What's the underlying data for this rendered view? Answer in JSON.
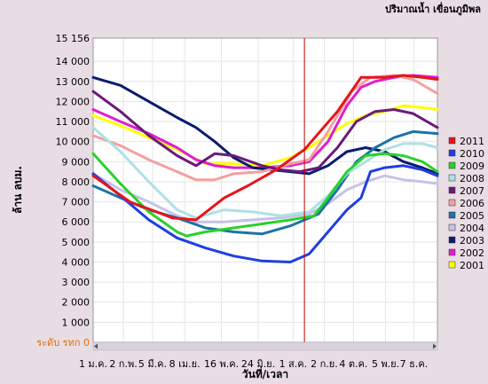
{
  "chart_data": {
    "type": "line",
    "title": "ปริมาณน้ำ เขื่อนภูมิพล",
    "xlabel": "วันที่/เวลา",
    "ylabel": "ล้าน ลบม.",
    "ylim": [
      0,
      15156
    ],
    "yticks": [
      {
        "value": 0,
        "label": "ระดับ รทก 0"
      },
      {
        "value": 1000,
        "label": "1 000"
      },
      {
        "value": 2000,
        "label": "2 000"
      },
      {
        "value": 3000,
        "label": "3 000"
      },
      {
        "value": 4000,
        "label": "4 000"
      },
      {
        "value": 5000,
        "label": "5 000"
      },
      {
        "value": 6000,
        "label": "6 000"
      },
      {
        "value": 7000,
        "label": "7 000"
      },
      {
        "value": 8000,
        "label": "8 000"
      },
      {
        "value": 9000,
        "label": "9 000"
      },
      {
        "value": 10000,
        "label": "10 000"
      },
      {
        "value": 11000,
        "label": "11 000"
      },
      {
        "value": 12000,
        "label": "12 000"
      },
      {
        "value": 13000,
        "label": "13 000"
      },
      {
        "value": 14000,
        "label": "14 000"
      },
      {
        "value": 15156,
        "label": "15 156"
      }
    ],
    "xlim": [
      1,
      366
    ],
    "xticks": [
      {
        "day": 1,
        "label": "1 ม.ค."
      },
      {
        "day": 33,
        "label": "2 ก.พ."
      },
      {
        "day": 64,
        "label": "5 มี.ค."
      },
      {
        "day": 98,
        "label": "8 เม.ย."
      },
      {
        "day": 137,
        "label": "16 พ.ค."
      },
      {
        "day": 176,
        "label": "24 มิ.ย."
      },
      {
        "day": 213,
        "label": "1 ส.ค."
      },
      {
        "day": 246,
        "label": "2 ก.ย."
      },
      {
        "day": 277,
        "label": "4 ต.ค."
      },
      {
        "day": 311,
        "label": "5 พ.ย."
      },
      {
        "day": 341,
        "label": "7 ธ.ค."
      }
    ],
    "marker_day": 225,
    "legend_position": "right",
    "series": [
      {
        "name": "2011",
        "color": "#e8141a",
        "points": [
          [
            1,
            8300
          ],
          [
            40,
            7000
          ],
          [
            85,
            6200
          ],
          [
            110,
            6100
          ],
          [
            140,
            7200
          ],
          [
            165,
            7800
          ],
          [
            195,
            8600
          ],
          [
            225,
            9600
          ],
          [
            260,
            11500
          ],
          [
            285,
            13200
          ],
          [
            310,
            13200
          ],
          [
            330,
            13300
          ],
          [
            350,
            13200
          ],
          [
            366,
            13100
          ]
        ]
      },
      {
        "name": "2010",
        "color": "#1f3fe0",
        "points": [
          [
            1,
            8400
          ],
          [
            30,
            7300
          ],
          [
            60,
            6100
          ],
          [
            90,
            5200
          ],
          [
            120,
            4700
          ],
          [
            150,
            4300
          ],
          [
            180,
            4050
          ],
          [
            210,
            4000
          ],
          [
            230,
            4400
          ],
          [
            250,
            5500
          ],
          [
            270,
            6600
          ],
          [
            285,
            7200
          ],
          [
            295,
            8500
          ],
          [
            310,
            8700
          ],
          [
            330,
            8800
          ],
          [
            350,
            8600
          ],
          [
            366,
            8300
          ]
        ]
      },
      {
        "name": "2009",
        "color": "#2ad12a",
        "points": [
          [
            1,
            9400
          ],
          [
            30,
            7900
          ],
          [
            60,
            6500
          ],
          [
            90,
            5500
          ],
          [
            100,
            5300
          ],
          [
            120,
            5500
          ],
          [
            150,
            5700
          ],
          [
            180,
            5900
          ],
          [
            210,
            6100
          ],
          [
            235,
            6300
          ],
          [
            250,
            7200
          ],
          [
            270,
            8500
          ],
          [
            290,
            9300
          ],
          [
            310,
            9400
          ],
          [
            330,
            9300
          ],
          [
            350,
            9000
          ],
          [
            366,
            8500
          ]
        ]
      },
      {
        "name": "2008",
        "color": "#aee0e4",
        "points": [
          [
            1,
            10700
          ],
          [
            30,
            9500
          ],
          [
            60,
            8000
          ],
          [
            90,
            6600
          ],
          [
            110,
            6200
          ],
          [
            140,
            6600
          ],
          [
            170,
            6500
          ],
          [
            200,
            6300
          ],
          [
            230,
            6500
          ],
          [
            250,
            7300
          ],
          [
            270,
            8400
          ],
          [
            290,
            9000
          ],
          [
            310,
            9600
          ],
          [
            330,
            9900
          ],
          [
            350,
            9900
          ],
          [
            366,
            9700
          ]
        ]
      },
      {
        "name": "2007",
        "color": "#6a1b7a",
        "points": [
          [
            1,
            12500
          ],
          [
            30,
            11500
          ],
          [
            60,
            10300
          ],
          [
            90,
            9300
          ],
          [
            110,
            8800
          ],
          [
            130,
            9400
          ],
          [
            150,
            9300
          ],
          [
            180,
            8800
          ],
          [
            200,
            8600
          ],
          [
            220,
            8500
          ],
          [
            240,
            8700
          ],
          [
            260,
            9700
          ],
          [
            280,
            11000
          ],
          [
            300,
            11500
          ],
          [
            320,
            11600
          ],
          [
            340,
            11400
          ],
          [
            366,
            10700
          ]
        ]
      },
      {
        "name": "2006",
        "color": "#f2a0a0",
        "points": [
          [
            1,
            10300
          ],
          [
            30,
            9800
          ],
          [
            60,
            9100
          ],
          [
            90,
            8500
          ],
          [
            110,
            8100
          ],
          [
            130,
            8100
          ],
          [
            150,
            8400
          ],
          [
            180,
            8500
          ],
          [
            210,
            8900
          ],
          [
            230,
            9100
          ],
          [
            250,
            10500
          ],
          [
            275,
            12500
          ],
          [
            295,
            13200
          ],
          [
            320,
            13300
          ],
          [
            340,
            13100
          ],
          [
            366,
            12400
          ]
        ]
      },
      {
        "name": "2005",
        "color": "#1e73a8",
        "points": [
          [
            1,
            7800
          ],
          [
            30,
            7200
          ],
          [
            60,
            6600
          ],
          [
            90,
            6200
          ],
          [
            120,
            5700
          ],
          [
            150,
            5500
          ],
          [
            180,
            5400
          ],
          [
            210,
            5800
          ],
          [
            240,
            6400
          ],
          [
            260,
            7600
          ],
          [
            280,
            9000
          ],
          [
            300,
            9700
          ],
          [
            320,
            10200
          ],
          [
            340,
            10500
          ],
          [
            366,
            10400
          ]
        ]
      },
      {
        "name": "2004",
        "color": "#c6c2e8",
        "points": [
          [
            1,
            8400
          ],
          [
            30,
            7600
          ],
          [
            60,
            7000
          ],
          [
            90,
            6300
          ],
          [
            110,
            6000
          ],
          [
            140,
            6000
          ],
          [
            170,
            6100
          ],
          [
            200,
            6200
          ],
          [
            230,
            6400
          ],
          [
            250,
            6900
          ],
          [
            270,
            7600
          ],
          [
            290,
            8000
          ],
          [
            310,
            8300
          ],
          [
            330,
            8100
          ],
          [
            350,
            8000
          ],
          [
            366,
            7900
          ]
        ]
      },
      {
        "name": "2003",
        "color": "#0c1b6e",
        "points": [
          [
            1,
            13200
          ],
          [
            30,
            12800
          ],
          [
            60,
            12000
          ],
          [
            90,
            11200
          ],
          [
            110,
            10700
          ],
          [
            130,
            10000
          ],
          [
            150,
            9200
          ],
          [
            170,
            8700
          ],
          [
            190,
            8600
          ],
          [
            210,
            8500
          ],
          [
            230,
            8400
          ],
          [
            250,
            8800
          ],
          [
            270,
            9500
          ],
          [
            290,
            9700
          ],
          [
            310,
            9500
          ],
          [
            330,
            9000
          ],
          [
            350,
            8700
          ],
          [
            366,
            8400
          ]
        ]
      },
      {
        "name": "2002",
        "color": "#e01ed0",
        "points": [
          [
            1,
            11600
          ],
          [
            30,
            11000
          ],
          [
            60,
            10400
          ],
          [
            90,
            9700
          ],
          [
            110,
            9100
          ],
          [
            130,
            8800
          ],
          [
            150,
            8700
          ],
          [
            180,
            8700
          ],
          [
            210,
            8800
          ],
          [
            230,
            9000
          ],
          [
            250,
            10000
          ],
          [
            270,
            11800
          ],
          [
            285,
            12700
          ],
          [
            300,
            13000
          ],
          [
            320,
            13200
          ],
          [
            340,
            13300
          ],
          [
            366,
            13200
          ]
        ]
      },
      {
        "name": "2001",
        "color": "#ffff00",
        "points": [
          [
            1,
            11300
          ],
          [
            30,
            10800
          ],
          [
            60,
            10200
          ],
          [
            90,
            9600
          ],
          [
            120,
            8900
          ],
          [
            150,
            8900
          ],
          [
            180,
            8800
          ],
          [
            210,
            9200
          ],
          [
            230,
            9700
          ],
          [
            250,
            10300
          ],
          [
            270,
            10900
          ],
          [
            290,
            11300
          ],
          [
            310,
            11500
          ],
          [
            330,
            11800
          ],
          [
            350,
            11700
          ],
          [
            366,
            11600
          ]
        ]
      }
    ]
  }
}
